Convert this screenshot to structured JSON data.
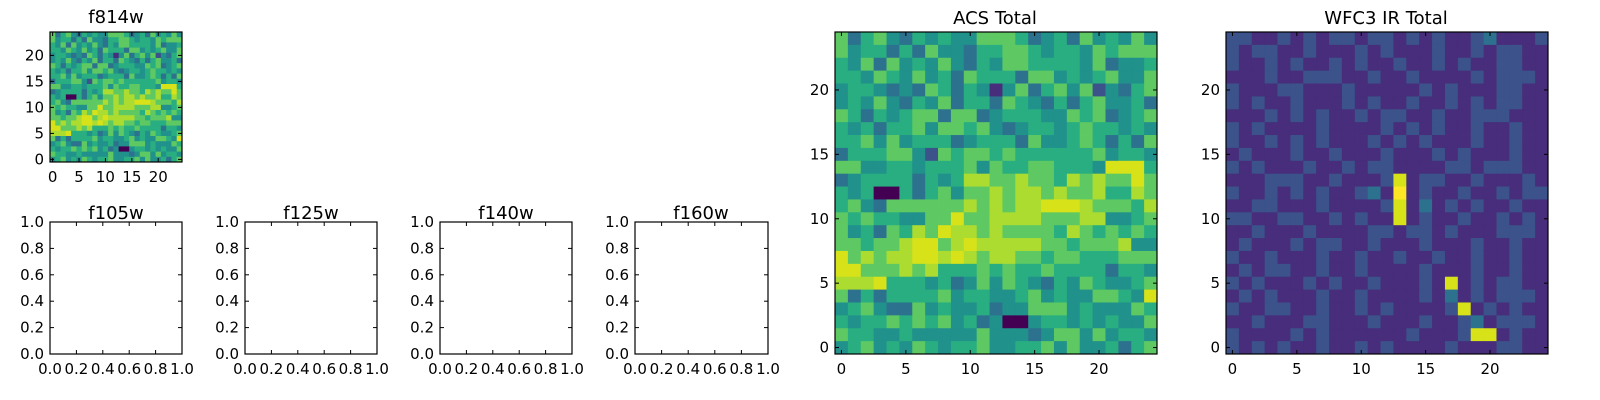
{
  "chart_data": [
    {
      "type": "heatmap",
      "title": "f814w",
      "colormap": "viridis",
      "xlim": [
        -0.5,
        24.5
      ],
      "ylim": [
        -0.5,
        24.5
      ],
      "xticks": [
        0,
        5,
        10,
        15,
        20
      ],
      "yticks": [
        0,
        5,
        10,
        15,
        20
      ],
      "xtick_labels": [
        "0",
        "5",
        "10",
        "15",
        "20"
      ],
      "ytick_labels": [
        "0",
        "5",
        "10",
        "15",
        "20"
      ],
      "grid_size": [
        25,
        25
      ],
      "image_ref": "acs"
    },
    {
      "type": "line",
      "title": "f105w",
      "xlim": [
        0.0,
        1.0
      ],
      "ylim": [
        0.0,
        1.0
      ],
      "xticks": [
        0.0,
        0.2,
        0.4,
        0.6,
        0.8,
        1.0
      ],
      "yticks": [
        0.0,
        0.2,
        0.4,
        0.6,
        0.8,
        1.0
      ],
      "xtick_labels": [
        "0.0",
        "0.2",
        "0.4",
        "0.6",
        "0.8",
        "1.0"
      ],
      "ytick_labels": [
        "0.0",
        "0.2",
        "0.4",
        "0.6",
        "0.8",
        "1.0"
      ],
      "series": []
    },
    {
      "type": "line",
      "title": "f125w",
      "xlim": [
        0.0,
        1.0
      ],
      "ylim": [
        0.0,
        1.0
      ],
      "xticks": [
        0.0,
        0.2,
        0.4,
        0.6,
        0.8,
        1.0
      ],
      "yticks": [
        0.0,
        0.2,
        0.4,
        0.6,
        0.8,
        1.0
      ],
      "xtick_labels": [
        "0.0",
        "0.2",
        "0.4",
        "0.6",
        "0.8",
        "1.0"
      ],
      "ytick_labels": [
        "0.0",
        "0.2",
        "0.4",
        "0.6",
        "0.8",
        "1.0"
      ],
      "series": []
    },
    {
      "type": "line",
      "title": "f140w",
      "xlim": [
        0.0,
        1.0
      ],
      "ylim": [
        0.0,
        1.0
      ],
      "xticks": [
        0.0,
        0.2,
        0.4,
        0.6,
        0.8,
        1.0
      ],
      "yticks": [
        0.0,
        0.2,
        0.4,
        0.6,
        0.8,
        1.0
      ],
      "xtick_labels": [
        "0.0",
        "0.2",
        "0.4",
        "0.6",
        "0.8",
        "1.0"
      ],
      "ytick_labels": [
        "0.0",
        "0.2",
        "0.4",
        "0.6",
        "0.8",
        "1.0"
      ],
      "series": []
    },
    {
      "type": "line",
      "title": "f160w",
      "xlim": [
        0.0,
        1.0
      ],
      "ylim": [
        0.0,
        1.0
      ],
      "xticks": [
        0.0,
        0.2,
        0.4,
        0.6,
        0.8,
        1.0
      ],
      "yticks": [
        0.0,
        0.2,
        0.4,
        0.6,
        0.8,
        1.0
      ],
      "xtick_labels": [
        "0.0",
        "0.2",
        "0.4",
        "0.6",
        "0.8",
        "1.0"
      ],
      "ytick_labels": [
        "0.0",
        "0.2",
        "0.4",
        "0.6",
        "0.8",
        "1.0"
      ],
      "series": []
    },
    {
      "type": "heatmap",
      "title": "ACS Total",
      "colormap": "viridis",
      "xlim": [
        -0.5,
        24.5
      ],
      "ylim": [
        -0.5,
        24.5
      ],
      "xticks": [
        0,
        5,
        10,
        15,
        20
      ],
      "yticks": [
        0,
        5,
        10,
        15,
        20
      ],
      "xtick_labels": [
        "0",
        "5",
        "10",
        "15",
        "20"
      ],
      "ytick_labels": [
        "0",
        "5",
        "10",
        "15",
        "20"
      ],
      "grid_size": [
        25,
        25
      ],
      "image_ref": "acs"
    },
    {
      "type": "heatmap",
      "title": "WFC3 IR Total",
      "colormap": "viridis",
      "xlim": [
        -0.5,
        24.5
      ],
      "ylim": [
        -0.5,
        24.5
      ],
      "xticks": [
        0,
        5,
        10,
        15,
        20
      ],
      "yticks": [
        0,
        5,
        10,
        15,
        20
      ],
      "xtick_labels": [
        "0",
        "5",
        "10",
        "15",
        "20"
      ],
      "ytick_labels": [
        "0",
        "5",
        "10",
        "15",
        "20"
      ],
      "grid_size": [
        25,
        25
      ],
      "image_ref": "ir"
    }
  ],
  "images": {
    "acs": {
      "row_order": "top_to_bottom",
      "rows": [
        "6356435454466653453645464",
        "6455353644355665455465666",
        "5463645464354665555463445",
        "5546546453655536645456446",
        "4554343653541463564624356",
        "4546435463553654353564453",
        "6535456636634555446563456",
        "5453556466564345545655454",
        "5564645553455536445653536",
        "3555664265665655555564554",
        "6644554555646556655548885",
        "3455553545776676657676686",
        "5450053564667677676675576",
        "5643666666767677888766657",
        "6565544668667777666774456",
        "6453657687767666657656565",
        "6656678867877777665666744",
        "8676778878767766566555666",
        "8866676755565655655553554",
        "7778555453464654354654456",
        "6353555564554456454466548",
        "4564336454453446664544465",
        "5455656564534004554545446",
        "6554454444464443466464554",
        "4564546545564455646445356"
      ]
    },
    "ir": {
      "row_order": "top_to_bottom",
      "rows": [
        "2211212122122121211231112",
        "2122112111212111211212211",
        "2112121121211211212112211",
        "1112112221121121111212221",
        "2111221112111112121112211",
        "2121121112121121121212211",
        "1112121211212211211222111",
        "2121111211112121211211211",
        "2112121211121212111211211",
        "1211121121112111212111211",
        "2121112112122111122122211",
        "1112221121112812211211121",
        "2112121211231912112112122",
        "1122111211112813121211211",
        "2211221121211812112112121",
        "1121112111122122121112221",
        "1211121221121112111211211",
        "2112111211211211211211211",
        "1212211211211112111211211",
        "2121112121121112181212211",
        "1212111211211112131212221",
        "2112211211212111128121211",
        "1121112211121112112312221",
        "2111121211111121112881211",
        "2121211211212111121112211"
      ]
    }
  }
}
